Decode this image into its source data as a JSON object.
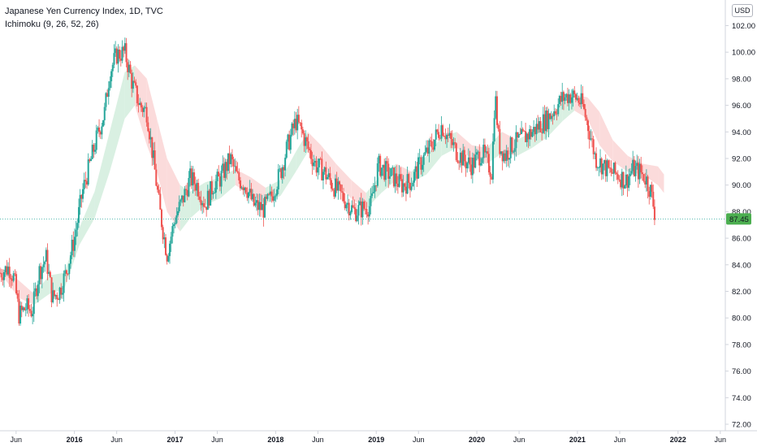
{
  "legend": {
    "symbol_line": "Japanese Yen Currency Index, 1D, TVC",
    "indicator_line": "Ichimoku (9, 26, 52, 26)"
  },
  "currency_label": "USD",
  "last_price_label": "87.45",
  "colors": {
    "up": "#26a69a",
    "down": "#ef5350",
    "cloud_up": "#d9f0e2",
    "cloud_down": "#fbdbdb",
    "price_line": "#26a69a",
    "badge_bg": "#4caf50",
    "axis_line": "#d1d4dc"
  },
  "chart_data": {
    "type": "candlestick",
    "title": "Japanese Yen Currency Index, 1D, TVC",
    "indicator": "Ichimoku (9, 26, 52, 26)",
    "ylim": [
      72,
      105
    ],
    "y_ticks": [
      "72.00",
      "74.00",
      "76.00",
      "78.00",
      "80.00",
      "82.00",
      "84.00",
      "86.00",
      "88.00",
      "90.00",
      "92.00",
      "94.00",
      "96.00",
      "98.00",
      "100.00",
      "102.00"
    ],
    "x_ticks": [
      {
        "label": "Jun",
        "year": false
      },
      {
        "label": "2016",
        "year": true
      },
      {
        "label": "Jun",
        "year": false
      },
      {
        "label": "2017",
        "year": true
      },
      {
        "label": "Jun",
        "year": false
      },
      {
        "label": "2018",
        "year": true
      },
      {
        "label": "Jun",
        "year": false
      },
      {
        "label": "2019",
        "year": true
      },
      {
        "label": "Jun",
        "year": false
      },
      {
        "label": "2020",
        "year": true
      },
      {
        "label": "Jun",
        "year": false
      },
      {
        "label": "2021",
        "year": true
      },
      {
        "label": "Jun",
        "year": false
      },
      {
        "label": "2022",
        "year": true
      },
      {
        "label": "Jun",
        "year": false
      }
    ],
    "x_tick_times": [
      2015.42,
      2016.0,
      2016.42,
      2017.0,
      2017.42,
      2018.0,
      2018.42,
      2019.0,
      2019.42,
      2020.0,
      2020.42,
      2021.0,
      2021.42,
      2022.0,
      2022.42
    ],
    "xlim": [
      2015.26,
      2022.47
    ],
    "last_price": 87.45,
    "price_path": [
      [
        2015.26,
        83.4
      ],
      [
        2015.35,
        83.8
      ],
      [
        2015.4,
        83.0
      ],
      [
        2015.45,
        80.2
      ],
      [
        2015.52,
        80.8
      ],
      [
        2015.58,
        80.5
      ],
      [
        2015.65,
        83.5
      ],
      [
        2015.72,
        84.5
      ],
      [
        2015.78,
        81.5
      ],
      [
        2015.85,
        82.0
      ],
      [
        2015.92,
        83.5
      ],
      [
        2016.0,
        86.0
      ],
      [
        2016.08,
        89.5
      ],
      [
        2016.15,
        91.5
      ],
      [
        2016.22,
        93.5
      ],
      [
        2016.3,
        95.5
      ],
      [
        2016.35,
        98.5
      ],
      [
        2016.42,
        99.8
      ],
      [
        2016.5,
        100.0
      ],
      [
        2016.58,
        97.5
      ],
      [
        2016.65,
        96.0
      ],
      [
        2016.72,
        95.5
      ],
      [
        2016.8,
        91.0
      ],
      [
        2016.85,
        88.0
      ],
      [
        2016.92,
        84.8
      ],
      [
        2017.0,
        87.5
      ],
      [
        2017.08,
        89.0
      ],
      [
        2017.15,
        90.5
      ],
      [
        2017.22,
        90.0
      ],
      [
        2017.3,
        88.5
      ],
      [
        2017.38,
        90.0
      ],
      [
        2017.45,
        90.5
      ],
      [
        2017.55,
        92.0
      ],
      [
        2017.62,
        90.5
      ],
      [
        2017.7,
        90.0
      ],
      [
        2017.78,
        88.5
      ],
      [
        2017.88,
        88.2
      ],
      [
        2017.95,
        89.0
      ],
      [
        2018.05,
        91.0
      ],
      [
        2018.12,
        93.0
      ],
      [
        2018.2,
        94.8
      ],
      [
        2018.25,
        94.2
      ],
      [
        2018.32,
        92.8
      ],
      [
        2018.4,
        91.5
      ],
      [
        2018.48,
        91.0
      ],
      [
        2018.55,
        90.2
      ],
      [
        2018.62,
        89.5
      ],
      [
        2018.7,
        88.8
      ],
      [
        2018.78,
        88.0
      ],
      [
        2018.85,
        88.2
      ],
      [
        2018.95,
        88.5
      ],
      [
        2019.02,
        91.5
      ],
      [
        2019.1,
        91.0
      ],
      [
        2019.18,
        90.5
      ],
      [
        2019.25,
        90.0
      ],
      [
        2019.35,
        90.3
      ],
      [
        2019.45,
        91.8
      ],
      [
        2019.55,
        93.0
      ],
      [
        2019.65,
        94.5
      ],
      [
        2019.72,
        93.5
      ],
      [
        2019.8,
        92.5
      ],
      [
        2019.88,
        91.8
      ],
      [
        2019.95,
        91.5
      ],
      [
        2020.05,
        92.5
      ],
      [
        2020.15,
        91.0
      ],
      [
        2020.18,
        97.0
      ],
      [
        2020.22,
        93.0
      ],
      [
        2020.28,
        92.2
      ],
      [
        2020.35,
        93.0
      ],
      [
        2020.45,
        93.5
      ],
      [
        2020.55,
        94.0
      ],
      [
        2020.62,
        94.5
      ],
      [
        2020.7,
        95.0
      ],
      [
        2020.78,
        95.8
      ],
      [
        2020.85,
        96.5
      ],
      [
        2020.92,
        96.8
      ],
      [
        2021.0,
        96.5
      ],
      [
        2021.05,
        96.0
      ],
      [
        2021.12,
        94.0
      ],
      [
        2021.18,
        92.0
      ],
      [
        2021.25,
        91.5
      ],
      [
        2021.32,
        91.0
      ],
      [
        2021.4,
        90.8
      ],
      [
        2021.48,
        90.3
      ],
      [
        2021.55,
        91.2
      ],
      [
        2021.62,
        91.0
      ],
      [
        2021.68,
        90.5
      ],
      [
        2021.73,
        89.5
      ],
      [
        2021.78,
        87.45
      ]
    ],
    "cloud_path": [
      [
        2015.3,
        83.0,
        83.6
      ],
      [
        2015.45,
        81.5,
        82.8
      ],
      [
        2015.6,
        81.0,
        81.8
      ],
      [
        2015.75,
        81.8,
        83.2
      ],
      [
        2015.9,
        82.2,
        83.4
      ],
      [
        2016.05,
        85.5,
        86.8
      ],
      [
        2016.2,
        87.5,
        89.5
      ],
      [
        2016.35,
        91.0,
        94.0
      ],
      [
        2016.5,
        95.0,
        98.5
      ],
      [
        2016.6,
        96.0,
        99.0
      ],
      [
        2016.72,
        93.0,
        98.0
      ],
      [
        2016.82,
        91.0,
        95.0
      ],
      [
        2016.92,
        88.0,
        92.0
      ],
      [
        2017.05,
        86.5,
        90.0
      ],
      [
        2017.15,
        87.5,
        89.5
      ],
      [
        2017.3,
        88.5,
        90.2
      ],
      [
        2017.45,
        89.0,
        90.6
      ],
      [
        2017.6,
        90.0,
        91.2
      ],
      [
        2017.75,
        89.3,
        90.6
      ],
      [
        2017.9,
        88.6,
        89.8
      ],
      [
        2018.05,
        89.2,
        90.4
      ],
      [
        2018.2,
        91.0,
        92.5
      ],
      [
        2018.32,
        92.5,
        94.0
      ],
      [
        2018.45,
        91.5,
        93.0
      ],
      [
        2018.6,
        90.2,
        91.6
      ],
      [
        2018.75,
        89.0,
        90.4
      ],
      [
        2018.9,
        88.2,
        89.4
      ],
      [
        2019.05,
        89.4,
        90.8
      ],
      [
        2019.2,
        90.4,
        91.6
      ],
      [
        2019.35,
        90.2,
        91.0
      ],
      [
        2019.5,
        90.8,
        92.2
      ],
      [
        2019.65,
        92.2,
        93.6
      ],
      [
        2019.8,
        92.8,
        94.0
      ],
      [
        2019.95,
        92.0,
        93.0
      ],
      [
        2020.1,
        91.6,
        92.8
      ],
      [
        2020.25,
        92.4,
        94.0
      ],
      [
        2020.4,
        92.2,
        93.4
      ],
      [
        2020.55,
        92.8,
        94.0
      ],
      [
        2020.7,
        93.6,
        95.0
      ],
      [
        2020.85,
        94.8,
        96.2
      ],
      [
        2020.97,
        95.6,
        96.8
      ],
      [
        2021.1,
        95.0,
        96.6
      ],
      [
        2021.22,
        93.0,
        95.5
      ],
      [
        2021.35,
        91.8,
        93.4
      ],
      [
        2021.5,
        91.0,
        92.2
      ],
      [
        2021.65,
        90.8,
        91.6
      ],
      [
        2021.8,
        90.0,
        91.4
      ],
      [
        2021.86,
        89.4,
        90.8
      ]
    ]
  }
}
